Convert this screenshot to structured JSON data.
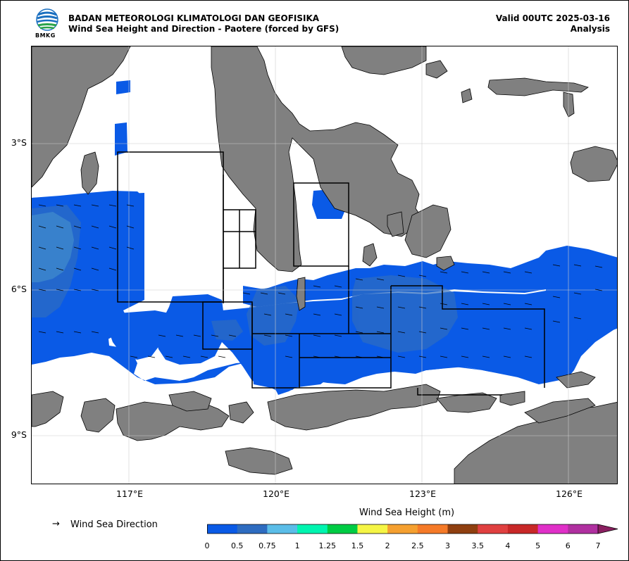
{
  "header": {
    "logo_text": "BMKG",
    "agency": "BADAN METEOROLOGI KLIMATOLOGI DAN GEOFISIKA",
    "product": "Wind Sea Height and Direction - Paotere (forced by GFS)",
    "valid": "Valid 00UTC 2025-03-16",
    "mode": "Analysis"
  },
  "axes": {
    "lat_labels": [
      "3°S",
      "6°S",
      "9°S"
    ],
    "lon_labels": [
      "117°E",
      "120°E",
      "123°E",
      "126°E"
    ]
  },
  "legend": {
    "arrow_glyph": "→",
    "direction_label": "Wind Sea Direction"
  },
  "colorbar": {
    "title": "Wind Sea Height (m)",
    "ticks": [
      "0",
      "0.5",
      "0.75",
      "1",
      "1.25",
      "1.5",
      "2",
      "2.5",
      "3",
      "3.5",
      "4",
      "5",
      "6",
      "7"
    ],
    "colors": [
      "#0a5ae6",
      "#2e6cc0",
      "#5bbde8",
      "#00f5b0",
      "#00cc44",
      "#f5f545",
      "#f5a030",
      "#f57a28",
      "#8f3f10",
      "#e04040",
      "#c82828",
      "#e030c8",
      "#b030a0",
      "#8a1f60"
    ]
  },
  "colors": {
    "land": "#808080",
    "sea_wave": "#0a5ae6",
    "sea_calm": "#ffffff",
    "high_wave": "#5bbde8",
    "domain_box": "#000000"
  }
}
